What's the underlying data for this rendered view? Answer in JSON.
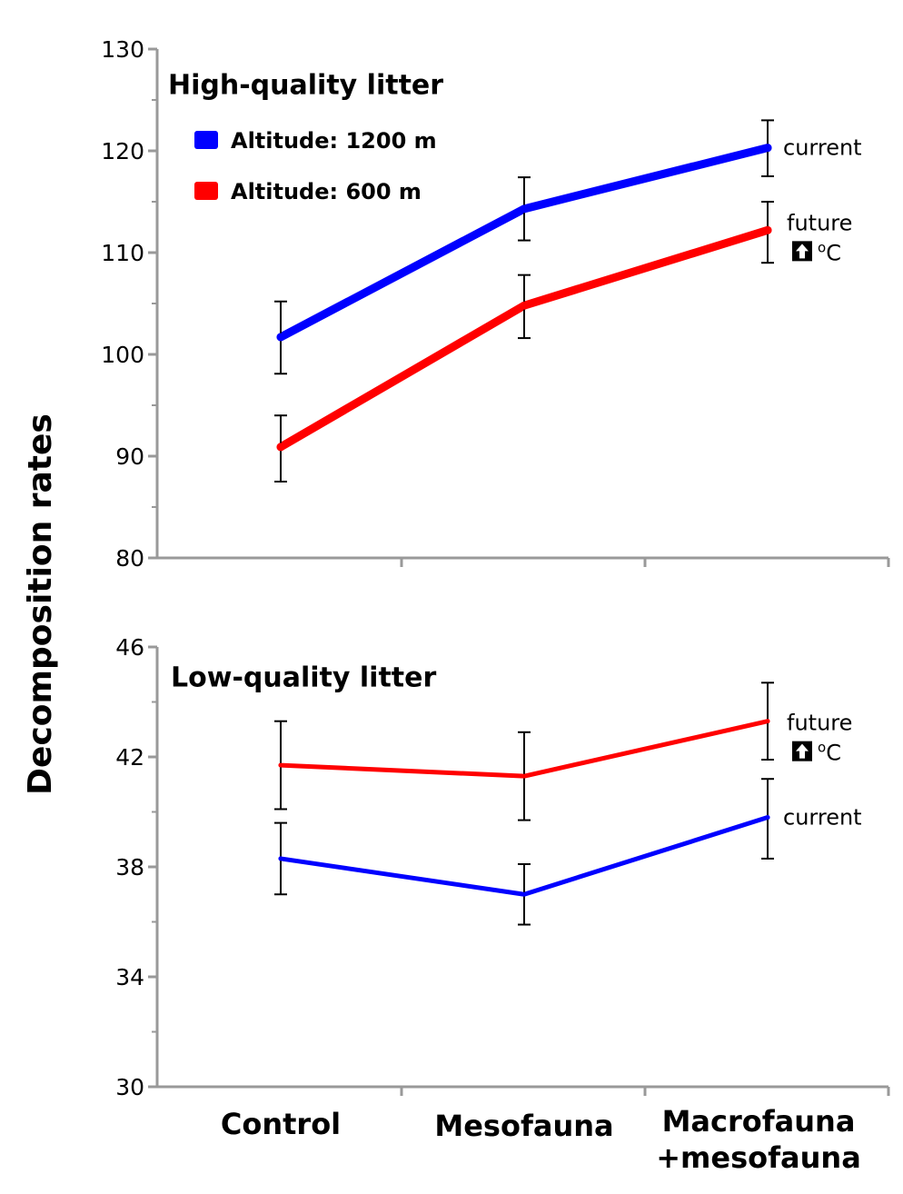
{
  "ylabel": "Decomposition rates",
  "categories": [
    "Control",
    "Mesofauna",
    "Macrofauna\n+mesofauna"
  ],
  "legend": [
    {
      "label": "Altitude: 1200 m",
      "color": "#0000ff"
    },
    {
      "label": "Altitude: 600 m",
      "color": "#ff0000"
    }
  ],
  "arrow_icon": "up-arrow-icon",
  "chart_data": [
    {
      "type": "line",
      "title": "High-quality litter",
      "ylim": [
        80,
        130
      ],
      "yticks": [
        80,
        90,
        100,
        110,
        120,
        130
      ],
      "categories": [
        "Control",
        "Mesofauna",
        "Macrofauna\n+mesofauna"
      ],
      "series": [
        {
          "name": "Altitude: 1200 m",
          "color": "#0000ff",
          "values": [
            101.7,
            114.3,
            120.3
          ],
          "err_low": [
            98.1,
            111.2,
            117.5
          ],
          "err_high": [
            105.2,
            117.4,
            123.0
          ],
          "annotation": "current"
        },
        {
          "name": "Altitude: 600 m",
          "color": "#ff0000",
          "values": [
            90.9,
            104.8,
            112.2
          ],
          "err_low": [
            87.5,
            101.6,
            109.0
          ],
          "err_high": [
            94.0,
            107.8,
            115.0
          ],
          "annotation": "future",
          "annotation_unit": "oC"
        }
      ]
    },
    {
      "type": "line",
      "title": "Low-quality litter",
      "ylim": [
        30,
        46
      ],
      "yticks": [
        30,
        34,
        38,
        42,
        46
      ],
      "categories": [
        "Control",
        "Mesofauna",
        "Macrofauna\n+mesofauna"
      ],
      "series": [
        {
          "name": "Altitude: 1200 m",
          "color": "#0000ff",
          "values": [
            38.3,
            37.0,
            39.8
          ],
          "err_low": [
            37.0,
            35.9,
            38.3
          ],
          "err_high": [
            39.6,
            38.1,
            41.2
          ],
          "annotation": "current"
        },
        {
          "name": "Altitude: 600 m",
          "color": "#ff0000",
          "values": [
            41.7,
            41.3,
            43.3
          ],
          "err_low": [
            40.1,
            39.7,
            41.9
          ],
          "err_high": [
            43.3,
            42.9,
            44.7
          ],
          "annotation": "future",
          "annotation_unit": "oC"
        }
      ]
    }
  ]
}
